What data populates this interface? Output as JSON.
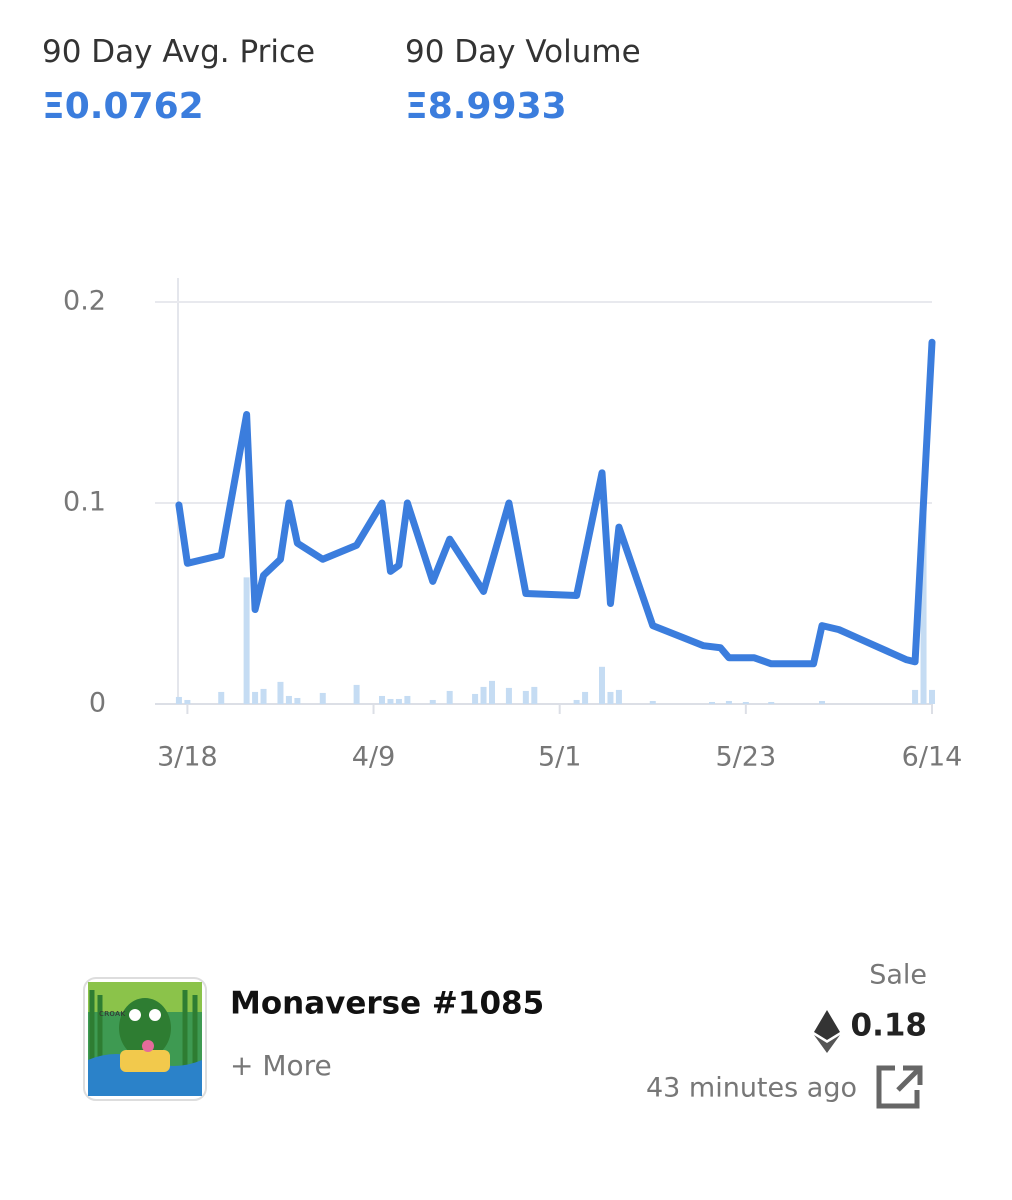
{
  "stats": [
    {
      "label": "90 Day Avg. Price",
      "value": "Ξ0.0762"
    },
    {
      "label": "90 Day Volume",
      "value": "Ξ8.9933"
    }
  ],
  "chart_data": {
    "type": "line",
    "ylim": [
      0,
      0.2
    ],
    "yticks": [
      0,
      0.1,
      0.2
    ],
    "xlim": [
      "3/15",
      "6/14"
    ],
    "xticks": [
      "3/18",
      "4/9",
      "5/1",
      "5/23",
      "6/14"
    ],
    "grid": true,
    "series": [
      {
        "type": "line",
        "color": "#3b7ddd",
        "x": [
          "3/17",
          "3/18",
          "3/22",
          "3/25",
          "3/26",
          "3/27",
          "3/29",
          "3/30",
          "3/31",
          "4/3",
          "4/7",
          "4/10",
          "4/11",
          "4/12",
          "4/13",
          "4/16",
          "4/18",
          "4/22",
          "4/25",
          "4/27",
          "5/3",
          "5/6",
          "5/7",
          "5/8",
          "5/12",
          "5/18",
          "5/20",
          "5/21",
          "5/24",
          "5/26",
          "5/31",
          "6/1",
          "6/3",
          "6/11",
          "6/12",
          "6/14"
        ],
        "values": [
          0.099,
          0.07,
          0.074,
          0.144,
          0.047,
          0.064,
          0.072,
          0.1,
          0.08,
          0.072,
          0.079,
          0.1,
          0.066,
          0.069,
          0.1,
          0.061,
          0.082,
          0.056,
          0.1,
          0.055,
          0.054,
          0.115,
          0.05,
          0.088,
          0.039,
          0.029,
          0.028,
          0.023,
          0.023,
          0.02,
          0.02,
          0.039,
          0.037,
          0.022,
          0.021,
          0.18
        ]
      },
      {
        "type": "bar",
        "color": "#c5dcf3",
        "x": [
          "3/17",
          "3/18",
          "3/22",
          "3/25",
          "3/26",
          "3/27",
          "3/29",
          "3/30",
          "3/31",
          "4/3",
          "4/7",
          "4/10",
          "4/11",
          "4/12",
          "4/13",
          "4/16",
          "4/18",
          "4/21",
          "4/22",
          "4/23",
          "4/25",
          "4/27",
          "4/28",
          "5/3",
          "5/4",
          "5/6",
          "5/7",
          "5/8",
          "5/12",
          "5/19",
          "5/21",
          "5/23",
          "5/26",
          "6/1",
          "6/12",
          "6/13",
          "6/14"
        ],
        "values": [
          0.0035,
          0.002,
          0.006,
          0.063,
          0.006,
          0.0075,
          0.011,
          0.004,
          0.003,
          0.0055,
          0.0095,
          0.004,
          0.0025,
          0.0025,
          0.004,
          0.002,
          0.0065,
          0.005,
          0.0085,
          0.0115,
          0.008,
          0.0065,
          0.0085,
          0.002,
          0.006,
          0.0185,
          0.006,
          0.007,
          0.0015,
          0.001,
          0.0015,
          0.001,
          0.001,
          0.0015,
          0.007,
          0.106,
          0.007
        ]
      }
    ]
  },
  "sale": {
    "name": "Monaverse #1085",
    "more": "+ More",
    "kind": "Sale",
    "price": "0.18",
    "time": "43 minutes ago"
  }
}
